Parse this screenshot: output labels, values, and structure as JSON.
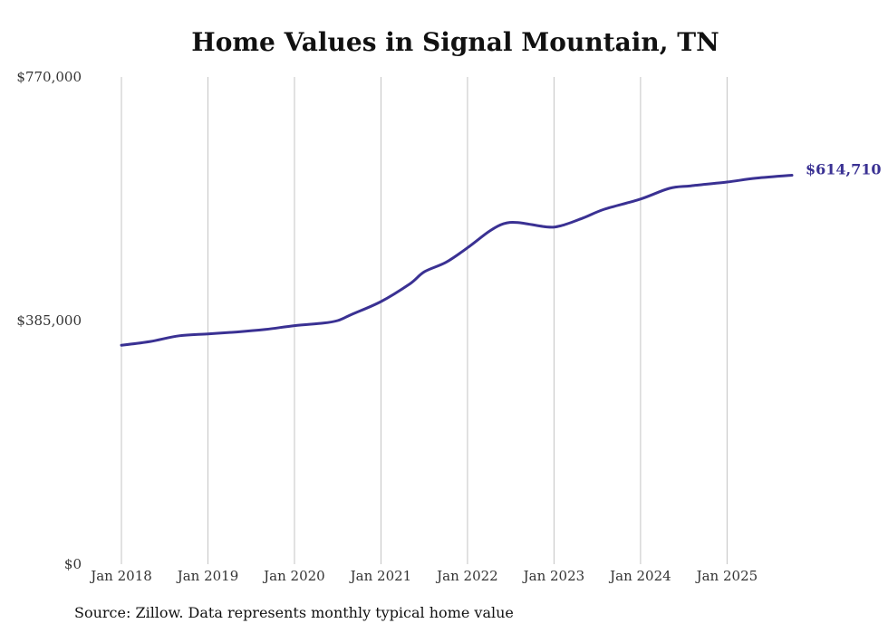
{
  "chart_data": {
    "type": "line",
    "title": "Home Values in Signal Mountain, TN",
    "xlabel": "",
    "ylabel": "",
    "y_ticks": [
      {
        "value": 770000,
        "label": "$770,000"
      },
      {
        "value": 385000,
        "label": "$385,000"
      },
      {
        "value": 0,
        "label": "$0"
      }
    ],
    "ylim": [
      0,
      770000
    ],
    "x_ticks": [
      "Jan 2018",
      "Jan 2019",
      "Jan 2020",
      "Jan 2021",
      "Jan 2022",
      "Jan 2023",
      "Jan 2024",
      "Jan 2025"
    ],
    "xlim": [
      "2018-01",
      "2025-10"
    ],
    "grid": "vertical",
    "color": "#3a3193",
    "series": [
      {
        "name": "",
        "points": [
          {
            "x": "2018-01",
            "y": 346000
          },
          {
            "x": "2018-05",
            "y": 352000
          },
          {
            "x": "2018-09",
            "y": 361000
          },
          {
            "x": "2019-01",
            "y": 364000
          },
          {
            "x": "2019-05",
            "y": 367000
          },
          {
            "x": "2019-09",
            "y": 371000
          },
          {
            "x": "2020-01",
            "y": 377000
          },
          {
            "x": "2020-05",
            "y": 381000
          },
          {
            "x": "2020-07",
            "y": 385000
          },
          {
            "x": "2020-09",
            "y": 395000
          },
          {
            "x": "2021-01",
            "y": 415000
          },
          {
            "x": "2021-05",
            "y": 443000
          },
          {
            "x": "2021-07",
            "y": 462000
          },
          {
            "x": "2021-10",
            "y": 477000
          },
          {
            "x": "2022-01",
            "y": 500000
          },
          {
            "x": "2022-04",
            "y": 526000
          },
          {
            "x": "2022-06",
            "y": 538000
          },
          {
            "x": "2022-08",
            "y": 540000
          },
          {
            "x": "2022-12",
            "y": 533000
          },
          {
            "x": "2023-02",
            "y": 535000
          },
          {
            "x": "2023-05",
            "y": 547000
          },
          {
            "x": "2023-08",
            "y": 561000
          },
          {
            "x": "2024-01",
            "y": 577000
          },
          {
            "x": "2024-05",
            "y": 594000
          },
          {
            "x": "2024-08",
            "y": 598000
          },
          {
            "x": "2025-01",
            "y": 604000
          },
          {
            "x": "2025-05",
            "y": 610000
          },
          {
            "x": "2025-10",
            "y": 614710
          }
        ]
      }
    ],
    "end_label": "$614,710"
  },
  "source_note": "Source: Zillow. Data represents monthly typical home value"
}
